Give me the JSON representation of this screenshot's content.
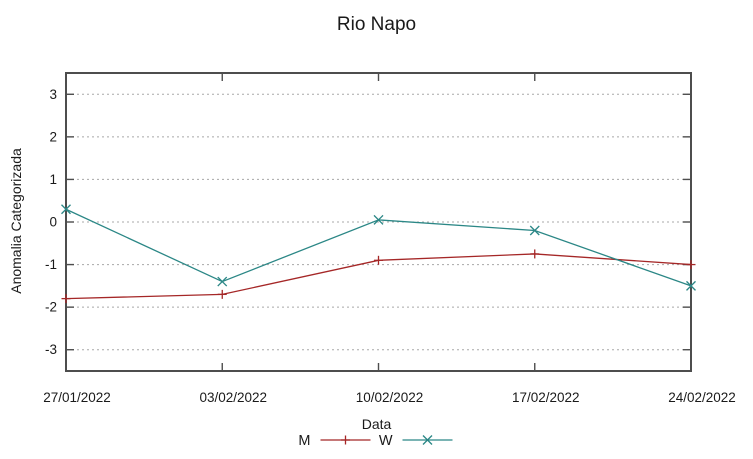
{
  "chart_data": {
    "type": "line",
    "title": "Rio Napo",
    "xlabel": "Data",
    "ylabel": "Anomalia Categorizada",
    "x_categories": [
      "27/01/2022",
      "03/02/2022",
      "10/02/2022",
      "17/02/2022",
      "24/02/2022"
    ],
    "y_ticks": [
      3,
      2,
      1,
      0,
      -1,
      -2,
      -3
    ],
    "ylim": [
      -3.5,
      3.5
    ],
    "grid": "horizontal-dotted",
    "legend_position": "below-x-label",
    "series": [
      {
        "name": "M",
        "marker": "plus",
        "color": "#a52727",
        "values": [
          -1.8,
          -1.7,
          -0.9,
          -0.75,
          -1.0
        ]
      },
      {
        "name": "W",
        "marker": "cross",
        "color": "#2b8786",
        "values": [
          0.3,
          -1.4,
          0.05,
          -0.2,
          -1.5
        ]
      }
    ],
    "colors": {
      "border": "#4d4d4d",
      "grid": "#a8a8a8",
      "text": "#1a1a1a",
      "background": "#ffffff"
    }
  }
}
